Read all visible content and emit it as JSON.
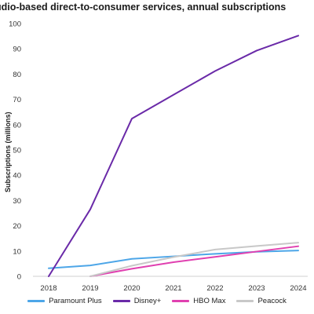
{
  "chart_data": {
    "type": "line",
    "title": "udio-based direct-to-consumer services, annual subscriptions",
    "xlabel": "",
    "ylabel": "Subscriptions (millions)",
    "x": [
      2018,
      2019,
      2020,
      2021,
      2022,
      2023,
      2024
    ],
    "xlim": [
      2018,
      2024
    ],
    "ylim": [
      0,
      100
    ],
    "yticks": [
      0,
      10,
      20,
      30,
      40,
      50,
      60,
      70,
      80,
      90,
      100
    ],
    "grid": false,
    "legend": "bottom",
    "series": [
      {
        "name": "Paramount Plus",
        "color": "#4da6e8",
        "values": [
          3.2,
          4.3,
          6.9,
          7.9,
          8.9,
          9.7,
          10.2
        ]
      },
      {
        "name": "Disney+",
        "color": "#6a2aa8",
        "values": [
          0,
          26.5,
          62.4,
          71.8,
          81.2,
          89.3,
          95.2
        ]
      },
      {
        "name": "HBO Max",
        "color": "#e040b0",
        "values": [
          null,
          0,
          3.0,
          5.6,
          7.7,
          9.8,
          11.9
        ]
      },
      {
        "name": "Peacock",
        "color": "#c8c8c8",
        "values": [
          null,
          0,
          4.2,
          7.6,
          10.6,
          12.0,
          13.3
        ]
      }
    ]
  }
}
